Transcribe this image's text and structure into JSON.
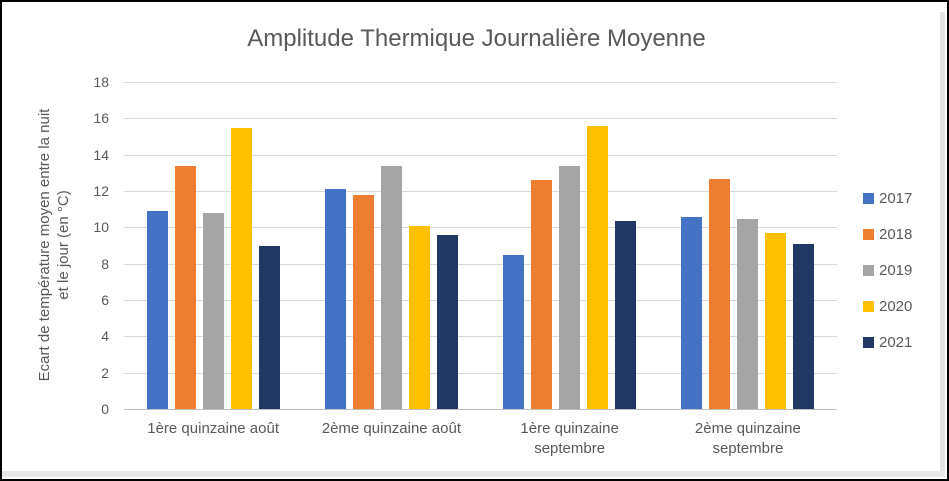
{
  "window": {
    "background": "#ffffff",
    "border_color": "#000000",
    "sheet_edge_color": "#E6E6E6"
  },
  "chart_data": {
    "type": "bar",
    "title": "Amplitude Thermique Journalière Moyenne",
    "ylabel": "Ecart de température moyen entre la nuit\net le jour (en °C)",
    "xlabel": "",
    "ylim": [
      0,
      18
    ],
    "ytick_step": 2,
    "grid": true,
    "legend_position": "right",
    "categories": [
      "1ère quinzaine août",
      "2ème quinzaine août",
      "1ère quinzaine septembre",
      "2ème quinzaine septembre"
    ],
    "series": [
      {
        "name": "2017",
        "color": "#4472C4",
        "values": [
          10.9,
          12.1,
          8.5,
          10.55
        ]
      },
      {
        "name": "2018",
        "color": "#ED7D31",
        "values": [
          13.35,
          11.8,
          12.6,
          12.65
        ]
      },
      {
        "name": "2019",
        "color": "#A5A5A5",
        "values": [
          10.8,
          13.4,
          13.4,
          10.45
        ]
      },
      {
        "name": "2020",
        "color": "#FFC000",
        "values": [
          15.45,
          10.1,
          15.6,
          9.7
        ]
      },
      {
        "name": "2021",
        "color": "#203864",
        "values": [
          9.0,
          9.6,
          10.35,
          9.1
        ]
      }
    ],
    "colors": {
      "grid": "#D9D9D9",
      "axis_line": "#BFBFBF",
      "text": "#595959"
    }
  }
}
